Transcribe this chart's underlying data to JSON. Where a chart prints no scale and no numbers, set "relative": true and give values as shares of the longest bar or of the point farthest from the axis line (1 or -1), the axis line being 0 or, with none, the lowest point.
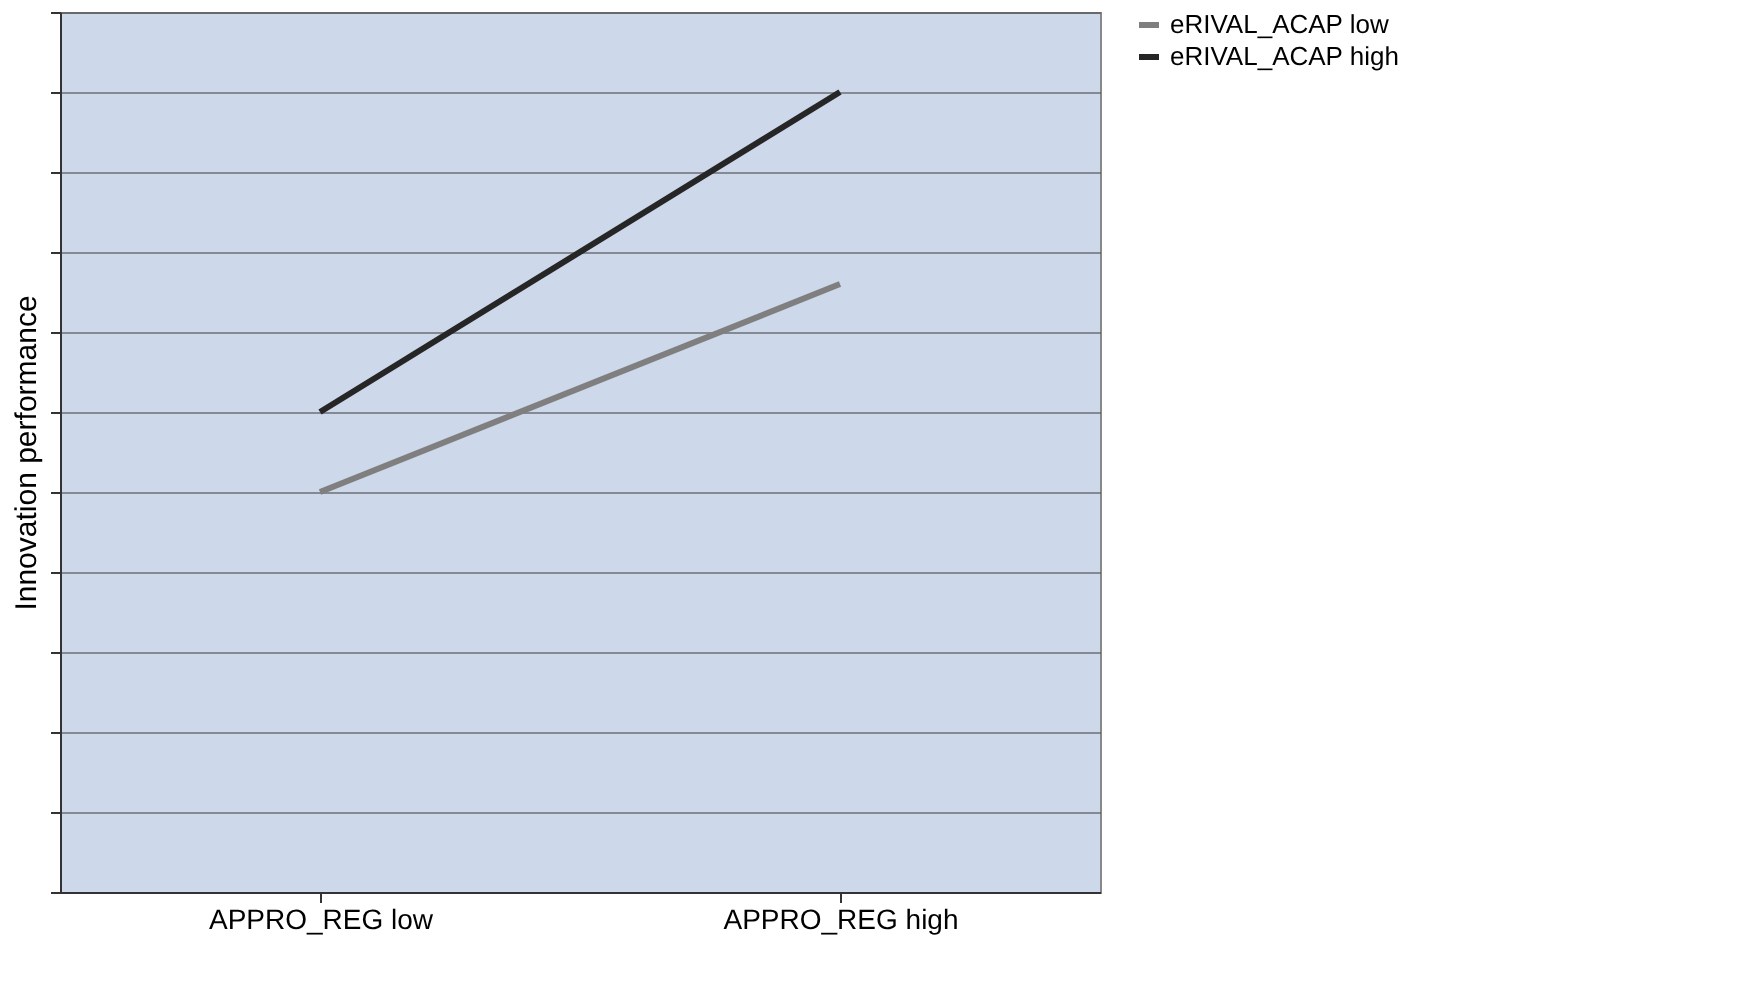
{
  "chart_data": {
    "type": "line",
    "ylabel": "Innovation performance",
    "categories": [
      "APPRO_REG low",
      "APPRO_REG high"
    ],
    "relative": true,
    "series": [
      {
        "name": "eRIVAL_ACAP low",
        "color": "#7f7f7f",
        "values": [
          0.5,
          0.76
        ]
      },
      {
        "name": "eRIVAL_ACAP high",
        "color": "#262626",
        "values": [
          0.6,
          1
        ]
      }
    ],
    "grid": "y",
    "legend": "right",
    "marker": "none",
    "line_style": "solid"
  }
}
